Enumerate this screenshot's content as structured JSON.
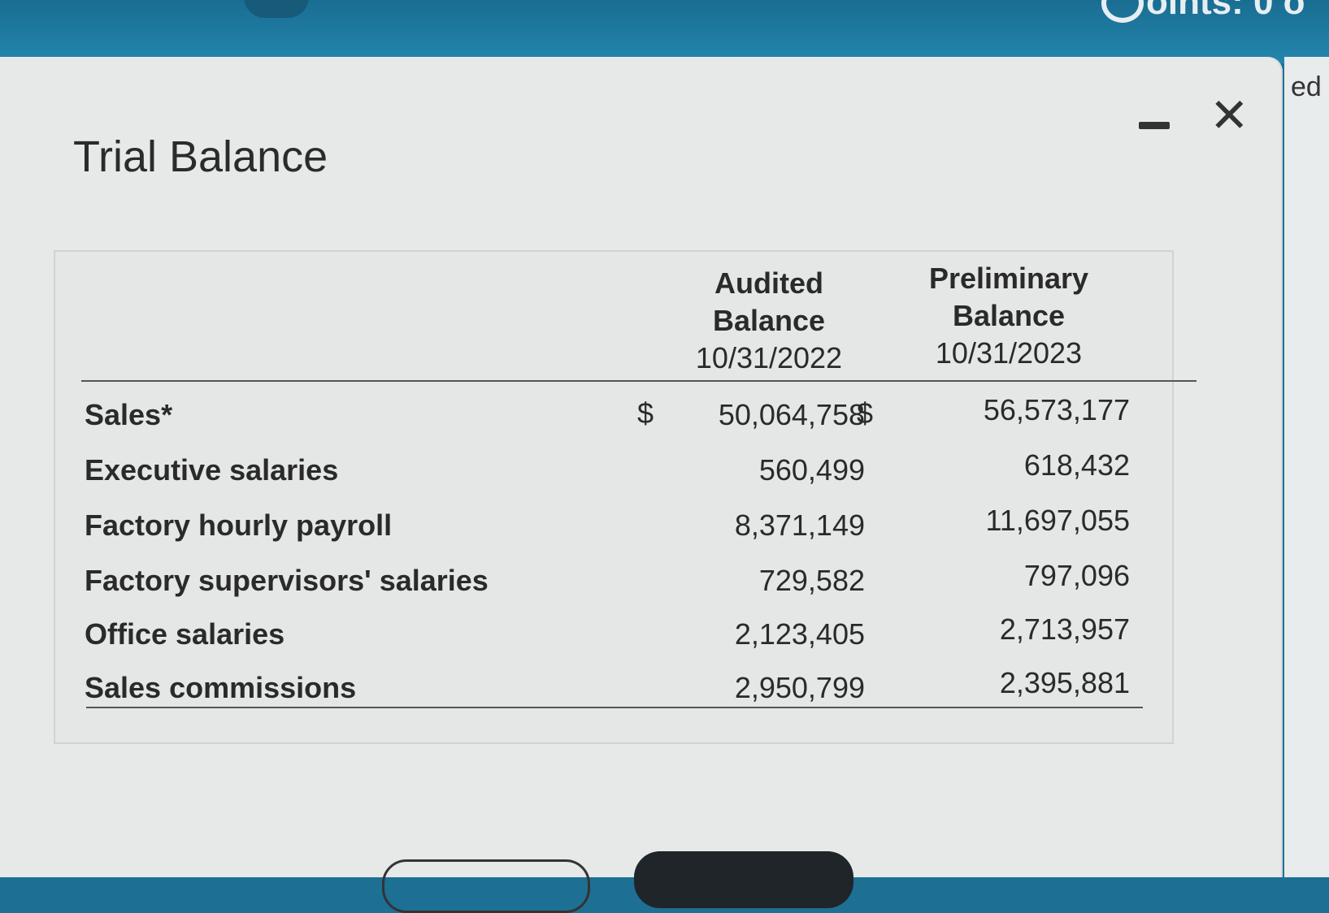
{
  "header": {
    "partial_text": "oints: 0 o"
  },
  "background": {
    "partial_text": "ed"
  },
  "dialog": {
    "title": "Trial Balance",
    "minimize_icon": "minimize-icon",
    "close_icon": "close-icon",
    "close_glyph": "✕"
  },
  "table": {
    "columns": [
      {
        "line1": "Audited",
        "line2": "Balance",
        "date": "10/31/2022"
      },
      {
        "line1": "Preliminary",
        "line2": "Balance",
        "date": "10/31/2023"
      }
    ],
    "currency_symbol": "$",
    "rows": [
      {
        "label": "Sales*",
        "audited": "50,064,758",
        "preliminary": "56,573,177"
      },
      {
        "label": "Executive salaries",
        "audited": "560,499",
        "preliminary": "618,432"
      },
      {
        "label": "Factory hourly payroll",
        "audited": "8,371,149",
        "preliminary": "11,697,055"
      },
      {
        "label": "Factory supervisors' salaries",
        "audited": "729,582",
        "preliminary": "797,096"
      },
      {
        "label": "Office salaries",
        "audited": "2,123,405",
        "preliminary": "2,713,957"
      },
      {
        "label": "Sales commissions",
        "audited": "2,950,799",
        "preliminary": "2,395,881"
      }
    ]
  }
}
